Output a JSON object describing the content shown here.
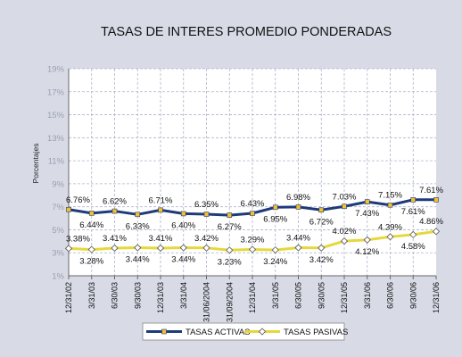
{
  "chart_data": {
    "type": "line",
    "title": "TASAS DE INTERES PROMEDIO PONDERADAS",
    "ylabel": "Porcentajes",
    "xlabel": "",
    "ylim": [
      1,
      19
    ],
    "yticks": [
      1,
      3,
      5,
      7,
      9,
      11,
      13,
      15,
      17,
      19
    ],
    "ytick_labels": [
      "1%",
      "3%",
      "5%",
      "7%",
      "9%",
      "11%",
      "13%",
      "15%",
      "17%",
      "19%"
    ],
    "grid": true,
    "legend_position": "bottom",
    "categories": [
      "12/31/02",
      "3/31/03",
      "6/30/03",
      "9/30/03",
      "12/31/03",
      "3/31/04",
      "31/06/2004",
      "31/09/2004",
      "12/31/04",
      "3/31/05",
      "6/30/05",
      "9/30/05",
      "12/31/05",
      "3/31/06",
      "6/30/06",
      "9/30/06",
      "12/31/06"
    ],
    "series": [
      {
        "name": "TASAS ACTIVAS",
        "color": "#1f3a7a",
        "marker_color": "#f2c12e",
        "marker": "square",
        "values": [
          6.76,
          6.44,
          6.62,
          6.33,
          6.71,
          6.4,
          6.35,
          6.27,
          6.43,
          6.95,
          6.98,
          6.72,
          7.03,
          7.43,
          7.15,
          7.61,
          7.61
        ],
        "labels": [
          "6.76%",
          "6.44%",
          "6.62%",
          "6.33%",
          "6.71%",
          "6.40%",
          "6.35%",
          "6.27%",
          "6.43%",
          "6.95%",
          "6.98%",
          "6.72%",
          "7.03%",
          "7.43%",
          "7.15%",
          "7.61%",
          "7.61%"
        ]
      },
      {
        "name": "TASAS PASIVAS",
        "color": "#e6d83c",
        "marker_color": "#ffffff",
        "marker": "diamond",
        "values": [
          3.38,
          3.28,
          3.41,
          3.44,
          3.41,
          3.44,
          3.42,
          3.23,
          3.29,
          3.24,
          3.44,
          3.42,
          4.02,
          4.12,
          4.39,
          4.58,
          4.86
        ],
        "labels": [
          "3.38%",
          "3.28%",
          "3.41%",
          "3.44%",
          "3.41%",
          "3.44%",
          "3.42%",
          "3.23%",
          "3.29%",
          "3.24%",
          "3.44%",
          "3.42%",
          "4.02%",
          "4.12%",
          "4.39%",
          "4.58%",
          "4.86%"
        ]
      }
    ]
  }
}
